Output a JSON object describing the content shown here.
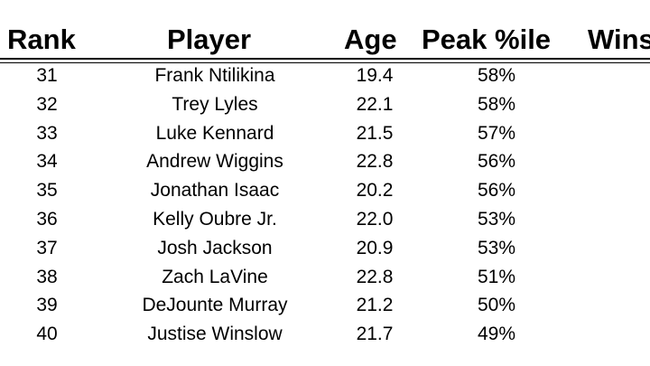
{
  "table": {
    "headers": {
      "rank": "Rank",
      "player": "Player",
      "age": "Age",
      "peak": "Peak %ile",
      "wins": "Wins"
    },
    "rows": [
      {
        "rank": "31",
        "player": "Frank Ntilikina",
        "age": "19.4",
        "peak": "58%"
      },
      {
        "rank": "32",
        "player": "Trey Lyles",
        "age": "22.1",
        "peak": "58%"
      },
      {
        "rank": "33",
        "player": "Luke Kennard",
        "age": "21.5",
        "peak": "57%"
      },
      {
        "rank": "34",
        "player": "Andrew Wiggins",
        "age": "22.8",
        "peak": "56%"
      },
      {
        "rank": "35",
        "player": "Jonathan Isaac",
        "age": "20.2",
        "peak": "56%"
      },
      {
        "rank": "36",
        "player": "Kelly Oubre Jr.",
        "age": "22.0",
        "peak": "53%"
      },
      {
        "rank": "37",
        "player": "Josh Jackson",
        "age": "20.9",
        "peak": "53%"
      },
      {
        "rank": "38",
        "player": "Zach LaVine",
        "age": "22.8",
        "peak": "51%"
      },
      {
        "rank": "39",
        "player": "DeJounte Murray",
        "age": "21.2",
        "peak": "50%"
      },
      {
        "rank": "40",
        "player": "Justise Winslow",
        "age": "21.7",
        "peak": "49%"
      }
    ]
  }
}
